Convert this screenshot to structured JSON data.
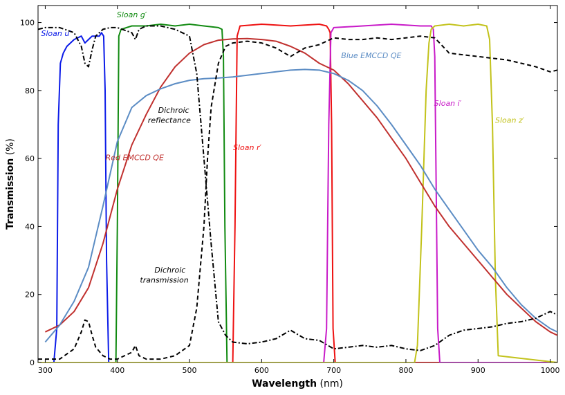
{
  "chart_data": {
    "type": "line",
    "title": "",
    "xlabel_bold": "Wavelength",
    "xlabel_unit": "(nm)",
    "ylabel_bold": "Transmission",
    "ylabel_unit": "(%)",
    "xlim": [
      290,
      1010
    ],
    "ylim": [
      0,
      105
    ],
    "xticks": [
      300,
      400,
      500,
      600,
      700,
      800,
      900,
      1000
    ],
    "yticks": [
      0,
      20,
      40,
      60,
      80,
      100
    ],
    "grid": false,
    "series": [
      {
        "name": "Sloan u'",
        "color": "#0b1be8",
        "dash": "",
        "x": [
          290,
          312,
          316,
          318,
          321,
          325,
          330,
          340,
          350,
          355,
          360,
          365,
          370,
          375,
          378,
          381,
          383,
          385,
          388,
          392,
          1010
        ],
        "y": [
          0,
          0,
          10,
          70,
          88,
          91,
          93,
          95,
          96,
          94,
          95,
          96,
          96,
          96,
          97,
          96,
          80,
          30,
          0,
          0,
          0
        ]
      },
      {
        "name": "Sloan g'",
        "color": "#118a11",
        "dash": "",
        "x": [
          290,
          398,
          400,
          402,
          405,
          420,
          440,
          460,
          480,
          500,
          520,
          540,
          545,
          547,
          549,
          552,
          1010
        ],
        "y": [
          0,
          0,
          40,
          96,
          98,
          99,
          99,
          99.5,
          99,
          99.5,
          99,
          98.5,
          98,
          90,
          40,
          0,
          0
        ]
      },
      {
        "name": "Sloan r'",
        "color": "#ee1111",
        "dash": "",
        "x": [
          290,
          560,
          563,
          566,
          570,
          600,
          640,
          680,
          690,
          693,
          695,
          697,
          699,
          702,
          1010
        ],
        "y": [
          0,
          0,
          40,
          96,
          99,
          99.5,
          99,
          99.5,
          99,
          98,
          97,
          70,
          10,
          0,
          0
        ]
      },
      {
        "name": "Sloan i'",
        "color": "#c81ac8",
        "dash": "",
        "x": [
          290,
          686,
          690,
          693,
          696,
          700,
          740,
          780,
          820,
          835,
          838,
          840,
          842,
          844,
          847,
          1010
        ],
        "y": [
          0,
          0,
          10,
          70,
          97,
          98.5,
          99,
          99.5,
          99,
          99,
          98,
          90,
          50,
          10,
          0,
          0
        ]
      },
      {
        "name": "Sloan z'",
        "color": "#c2c21a",
        "dash": "",
        "x": [
          290,
          812,
          816,
          822,
          828,
          832,
          835,
          840,
          860,
          880,
          900,
          912,
          916,
          920,
          924,
          928,
          1010
        ],
        "y": [
          0,
          0,
          5,
          40,
          80,
          94,
          98,
          99,
          99.5,
          99,
          99.5,
          99,
          95,
          70,
          25,
          2,
          0
        ]
      },
      {
        "name": "Red EMCCD QE",
        "color": "#c0302e",
        "dash": "",
        "x": [
          300,
          320,
          340,
          360,
          380,
          400,
          420,
          440,
          460,
          480,
          500,
          520,
          540,
          560,
          580,
          600,
          620,
          640,
          660,
          680,
          700,
          720,
          740,
          760,
          780,
          800,
          820,
          840,
          860,
          880,
          900,
          920,
          940,
          960,
          980,
          1000,
          1010
        ],
        "y": [
          9,
          11,
          15,
          22,
          35,
          51,
          64,
          73,
          81,
          87,
          91,
          93.5,
          94.8,
          95.2,
          95.3,
          95,
          94.5,
          93,
          91,
          88,
          86,
          82,
          77,
          72,
          66,
          60,
          53,
          46,
          40,
          35,
          30,
          25,
          20,
          16,
          12,
          9,
          8
        ]
      },
      {
        "name": "Blue EMCCD QE",
        "color": "#5b8cc4",
        "dash": "",
        "x": [
          300,
          320,
          340,
          360,
          380,
          400,
          420,
          440,
          460,
          480,
          500,
          520,
          540,
          560,
          580,
          600,
          620,
          640,
          660,
          680,
          700,
          720,
          740,
          760,
          780,
          800,
          820,
          840,
          860,
          880,
          900,
          920,
          940,
          960,
          980,
          1000,
          1010
        ],
        "y": [
          6,
          11,
          18,
          28,
          46,
          65,
          75,
          78.5,
          80.5,
          82,
          83,
          83.5,
          83.7,
          84,
          84.5,
          85,
          85.5,
          86,
          86.2,
          86,
          85,
          83,
          80,
          75.5,
          70,
          64,
          58,
          51,
          45,
          39,
          33,
          28,
          22,
          17,
          13,
          10,
          9
        ]
      },
      {
        "name": "Dichroic reflectance",
        "color": "#000000",
        "dash": "7,3,2,3",
        "x": [
          290,
          300,
          320,
          340,
          350,
          355,
          360,
          365,
          370,
          380,
          390,
          400,
          420,
          425,
          430,
          440,
          460,
          480,
          500,
          510,
          520,
          530,
          540,
          550,
          560,
          580,
          600,
          620,
          640,
          660,
          680,
          700,
          720,
          740,
          760,
          780,
          800,
          820,
          840,
          860,
          880,
          900,
          920,
          940,
          960,
          980,
          1000,
          1010
        ],
        "y": [
          98,
          98.5,
          98.5,
          97,
          93,
          88,
          87,
          92,
          96,
          98,
          98.5,
          98.5,
          97,
          95,
          98,
          99,
          99,
          98,
          96,
          85,
          60,
          35,
          12,
          8,
          6,
          5.5,
          6,
          7,
          9.5,
          7,
          6.5,
          4,
          4.5,
          5,
          4.5,
          5,
          4,
          3.5,
          5,
          8,
          9.5,
          10,
          10.5,
          11.5,
          12,
          13,
          15,
          14
        ]
      },
      {
        "name": "Dichroic transmission",
        "color": "#000000",
        "dash": "6,4",
        "x": [
          290,
          300,
          320,
          340,
          350,
          355,
          360,
          365,
          370,
          380,
          390,
          400,
          420,
          425,
          430,
          440,
          460,
          480,
          500,
          510,
          520,
          525,
          530,
          540,
          550,
          560,
          580,
          600,
          620,
          640,
          660,
          680,
          700,
          720,
          740,
          760,
          780,
          800,
          820,
          840,
          860,
          880,
          900,
          920,
          940,
          960,
          980,
          1000,
          1010
        ],
        "y": [
          1,
          1,
          1,
          4,
          9,
          12.5,
          12,
          8,
          4.5,
          2,
          1,
          1,
          3,
          5,
          2,
          1,
          1,
          2,
          5,
          16,
          40,
          60,
          75,
          88,
          93,
          94,
          94.5,
          94,
          92.5,
          90,
          92.5,
          93.5,
          95.5,
          95,
          95,
          95.5,
          95,
          95.5,
          96,
          95.5,
          91,
          90.5,
          90,
          89.5,
          89,
          88,
          87,
          85.5,
          86
        ]
      }
    ],
    "annotations": [
      {
        "id": "sloan-u",
        "text_base": "Sloan u",
        "prime": "′",
        "x": 315,
        "y": 96,
        "color": "#0b1be8"
      },
      {
        "id": "sloan-g",
        "text_base": "Sloan g",
        "prime": "′",
        "x": 420,
        "y": 101.5,
        "color": "#118a11"
      },
      {
        "id": "sloan-r",
        "text_base": "Sloan r",
        "prime": "′",
        "x": 580,
        "y": 62.5,
        "color": "#ee1111"
      },
      {
        "id": "sloan-i",
        "text_base": "Sloan i",
        "prime": "′",
        "x": 858,
        "y": 75.5,
        "color": "#c81ac8"
      },
      {
        "id": "sloan-z",
        "text_base": "Sloan z",
        "prime": "′",
        "x": 944,
        "y": 70.5,
        "color": "#c2c21a"
      },
      {
        "id": "red-qe",
        "text_base": "Red EMCCD QE",
        "prime": "",
        "x": 424,
        "y": 59.5,
        "color": "#c0302e"
      },
      {
        "id": "blue-qe",
        "text_base": "Blue EMCCD QE",
        "prime": "",
        "x": 752,
        "y": 89.5,
        "color": "#5b8cc4"
      },
      {
        "id": "dichroic-reflectance-1",
        "text_base": "Dichroic",
        "prime": "",
        "x": 478,
        "y": 73.5,
        "color": "#000000"
      },
      {
        "id": "dichroic-reflectance-2",
        "text_base": "reflectance",
        "prime": "",
        "x": 472,
        "y": 70.5,
        "color": "#000000"
      },
      {
        "id": "dichroic-transmission-1",
        "text_base": "Dichroic",
        "prime": "",
        "x": 473,
        "y": 26.5,
        "color": "#000000"
      },
      {
        "id": "dichroic-transmission-2",
        "text_base": "transmission",
        "prime": "",
        "x": 465,
        "y": 23.5,
        "color": "#000000"
      }
    ]
  }
}
